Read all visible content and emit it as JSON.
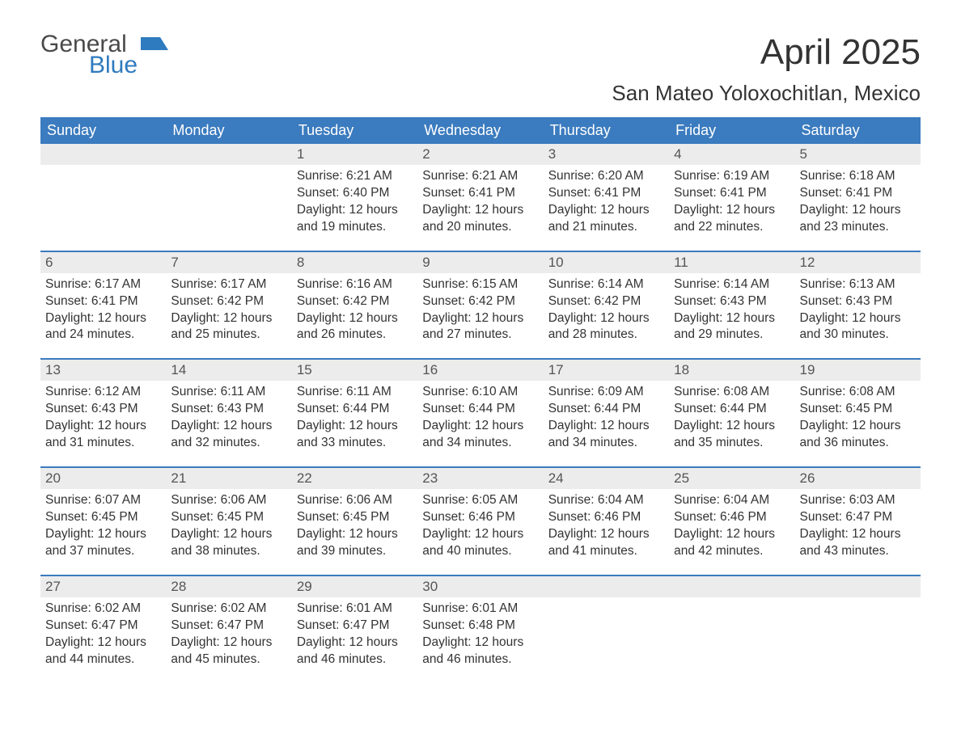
{
  "logo": {
    "general": "General",
    "blue": "Blue",
    "flag_color": "#2f7bbf"
  },
  "title": "April 2025",
  "location": "San Mateo Yoloxochitlan, Mexico",
  "colors": {
    "header_bg": "#3b7bbf",
    "header_text": "#ffffff",
    "daynum_bg": "#ececec",
    "week_border": "#3b7bbf",
    "body_text": "#333333"
  },
  "weekdays": [
    "Sunday",
    "Monday",
    "Tuesday",
    "Wednesday",
    "Thursday",
    "Friday",
    "Saturday"
  ],
  "weeks": [
    [
      {
        "n": "",
        "sr": "",
        "ss": "",
        "d1": "",
        "d2": ""
      },
      {
        "n": "",
        "sr": "",
        "ss": "",
        "d1": "",
        "d2": ""
      },
      {
        "n": "1",
        "sr": "Sunrise: 6:21 AM",
        "ss": "Sunset: 6:40 PM",
        "d1": "Daylight: 12 hours",
        "d2": "and 19 minutes."
      },
      {
        "n": "2",
        "sr": "Sunrise: 6:21 AM",
        "ss": "Sunset: 6:41 PM",
        "d1": "Daylight: 12 hours",
        "d2": "and 20 minutes."
      },
      {
        "n": "3",
        "sr": "Sunrise: 6:20 AM",
        "ss": "Sunset: 6:41 PM",
        "d1": "Daylight: 12 hours",
        "d2": "and 21 minutes."
      },
      {
        "n": "4",
        "sr": "Sunrise: 6:19 AM",
        "ss": "Sunset: 6:41 PM",
        "d1": "Daylight: 12 hours",
        "d2": "and 22 minutes."
      },
      {
        "n": "5",
        "sr": "Sunrise: 6:18 AM",
        "ss": "Sunset: 6:41 PM",
        "d1": "Daylight: 12 hours",
        "d2": "and 23 minutes."
      }
    ],
    [
      {
        "n": "6",
        "sr": "Sunrise: 6:17 AM",
        "ss": "Sunset: 6:41 PM",
        "d1": "Daylight: 12 hours",
        "d2": "and 24 minutes."
      },
      {
        "n": "7",
        "sr": "Sunrise: 6:17 AM",
        "ss": "Sunset: 6:42 PM",
        "d1": "Daylight: 12 hours",
        "d2": "and 25 minutes."
      },
      {
        "n": "8",
        "sr": "Sunrise: 6:16 AM",
        "ss": "Sunset: 6:42 PM",
        "d1": "Daylight: 12 hours",
        "d2": "and 26 minutes."
      },
      {
        "n": "9",
        "sr": "Sunrise: 6:15 AM",
        "ss": "Sunset: 6:42 PM",
        "d1": "Daylight: 12 hours",
        "d2": "and 27 minutes."
      },
      {
        "n": "10",
        "sr": "Sunrise: 6:14 AM",
        "ss": "Sunset: 6:42 PM",
        "d1": "Daylight: 12 hours",
        "d2": "and 28 minutes."
      },
      {
        "n": "11",
        "sr": "Sunrise: 6:14 AM",
        "ss": "Sunset: 6:43 PM",
        "d1": "Daylight: 12 hours",
        "d2": "and 29 minutes."
      },
      {
        "n": "12",
        "sr": "Sunrise: 6:13 AM",
        "ss": "Sunset: 6:43 PM",
        "d1": "Daylight: 12 hours",
        "d2": "and 30 minutes."
      }
    ],
    [
      {
        "n": "13",
        "sr": "Sunrise: 6:12 AM",
        "ss": "Sunset: 6:43 PM",
        "d1": "Daylight: 12 hours",
        "d2": "and 31 minutes."
      },
      {
        "n": "14",
        "sr": "Sunrise: 6:11 AM",
        "ss": "Sunset: 6:43 PM",
        "d1": "Daylight: 12 hours",
        "d2": "and 32 minutes."
      },
      {
        "n": "15",
        "sr": "Sunrise: 6:11 AM",
        "ss": "Sunset: 6:44 PM",
        "d1": "Daylight: 12 hours",
        "d2": "and 33 minutes."
      },
      {
        "n": "16",
        "sr": "Sunrise: 6:10 AM",
        "ss": "Sunset: 6:44 PM",
        "d1": "Daylight: 12 hours",
        "d2": "and 34 minutes."
      },
      {
        "n": "17",
        "sr": "Sunrise: 6:09 AM",
        "ss": "Sunset: 6:44 PM",
        "d1": "Daylight: 12 hours",
        "d2": "and 34 minutes."
      },
      {
        "n": "18",
        "sr": "Sunrise: 6:08 AM",
        "ss": "Sunset: 6:44 PM",
        "d1": "Daylight: 12 hours",
        "d2": "and 35 minutes."
      },
      {
        "n": "19",
        "sr": "Sunrise: 6:08 AM",
        "ss": "Sunset: 6:45 PM",
        "d1": "Daylight: 12 hours",
        "d2": "and 36 minutes."
      }
    ],
    [
      {
        "n": "20",
        "sr": "Sunrise: 6:07 AM",
        "ss": "Sunset: 6:45 PM",
        "d1": "Daylight: 12 hours",
        "d2": "and 37 minutes."
      },
      {
        "n": "21",
        "sr": "Sunrise: 6:06 AM",
        "ss": "Sunset: 6:45 PM",
        "d1": "Daylight: 12 hours",
        "d2": "and 38 minutes."
      },
      {
        "n": "22",
        "sr": "Sunrise: 6:06 AM",
        "ss": "Sunset: 6:45 PM",
        "d1": "Daylight: 12 hours",
        "d2": "and 39 minutes."
      },
      {
        "n": "23",
        "sr": "Sunrise: 6:05 AM",
        "ss": "Sunset: 6:46 PM",
        "d1": "Daylight: 12 hours",
        "d2": "and 40 minutes."
      },
      {
        "n": "24",
        "sr": "Sunrise: 6:04 AM",
        "ss": "Sunset: 6:46 PM",
        "d1": "Daylight: 12 hours",
        "d2": "and 41 minutes."
      },
      {
        "n": "25",
        "sr": "Sunrise: 6:04 AM",
        "ss": "Sunset: 6:46 PM",
        "d1": "Daylight: 12 hours",
        "d2": "and 42 minutes."
      },
      {
        "n": "26",
        "sr": "Sunrise: 6:03 AM",
        "ss": "Sunset: 6:47 PM",
        "d1": "Daylight: 12 hours",
        "d2": "and 43 minutes."
      }
    ],
    [
      {
        "n": "27",
        "sr": "Sunrise: 6:02 AM",
        "ss": "Sunset: 6:47 PM",
        "d1": "Daylight: 12 hours",
        "d2": "and 44 minutes."
      },
      {
        "n": "28",
        "sr": "Sunrise: 6:02 AM",
        "ss": "Sunset: 6:47 PM",
        "d1": "Daylight: 12 hours",
        "d2": "and 45 minutes."
      },
      {
        "n": "29",
        "sr": "Sunrise: 6:01 AM",
        "ss": "Sunset: 6:47 PM",
        "d1": "Daylight: 12 hours",
        "d2": "and 46 minutes."
      },
      {
        "n": "30",
        "sr": "Sunrise: 6:01 AM",
        "ss": "Sunset: 6:48 PM",
        "d1": "Daylight: 12 hours",
        "d2": "and 46 minutes."
      },
      {
        "n": "",
        "sr": "",
        "ss": "",
        "d1": "",
        "d2": ""
      },
      {
        "n": "",
        "sr": "",
        "ss": "",
        "d1": "",
        "d2": ""
      },
      {
        "n": "",
        "sr": "",
        "ss": "",
        "d1": "",
        "d2": ""
      }
    ]
  ]
}
